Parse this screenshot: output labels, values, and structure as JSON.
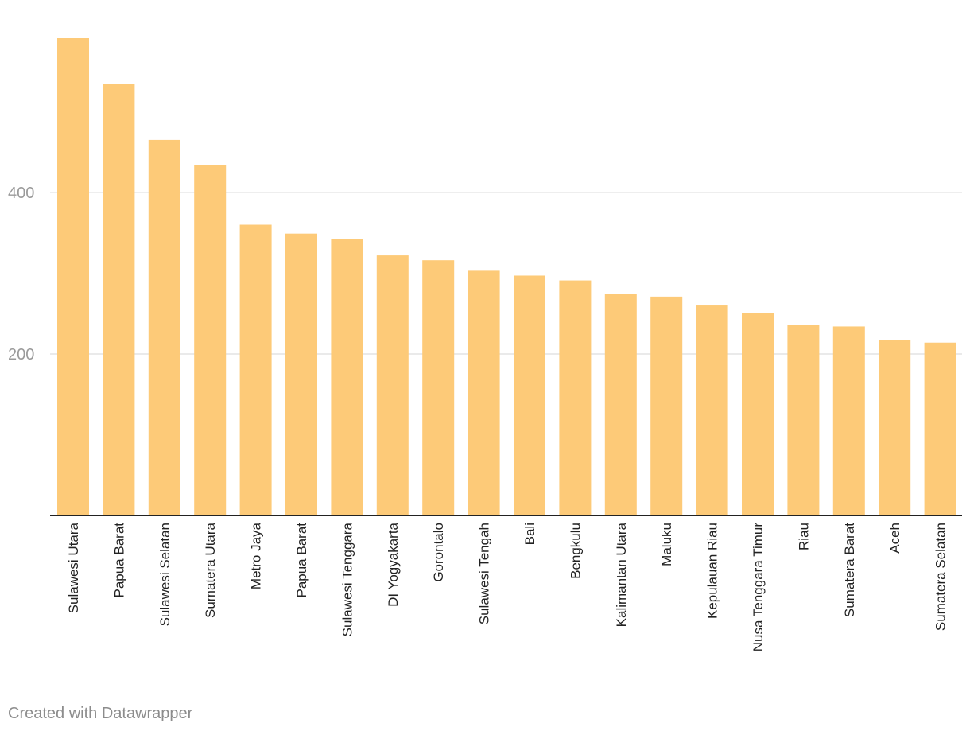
{
  "chart_data": {
    "type": "bar",
    "categories": [
      "Sulawesi Utara",
      "Papua Barat",
      "Sulawesi Selatan",
      "Sumatera Utara",
      "Metro Jaya",
      "Papua Barat",
      "Sulawesi Tenggara",
      "DI Yogyakarta",
      "Gorontalo",
      "Sulawesi Tengah",
      "Bali",
      "Bengkulu",
      "Kalimantan Utara",
      "Maluku",
      "Kepulauan Riau",
      "Nusa Tenggara Timur",
      "Riau",
      "Sumatera Barat",
      "Aceh",
      "Sumatera Selatan"
    ],
    "values": [
      591,
      534,
      465,
      434,
      360,
      349,
      342,
      322,
      316,
      303,
      297,
      291,
      274,
      271,
      260,
      251,
      236,
      234,
      217,
      214
    ],
    "ylim": [
      0,
      591
    ],
    "yticks": [
      200,
      400
    ],
    "grid": true,
    "bar_color": "#fdca78",
    "title": "",
    "xlabel": "",
    "ylabel": ""
  },
  "footer": {
    "credit": "Created with Datawrapper"
  }
}
